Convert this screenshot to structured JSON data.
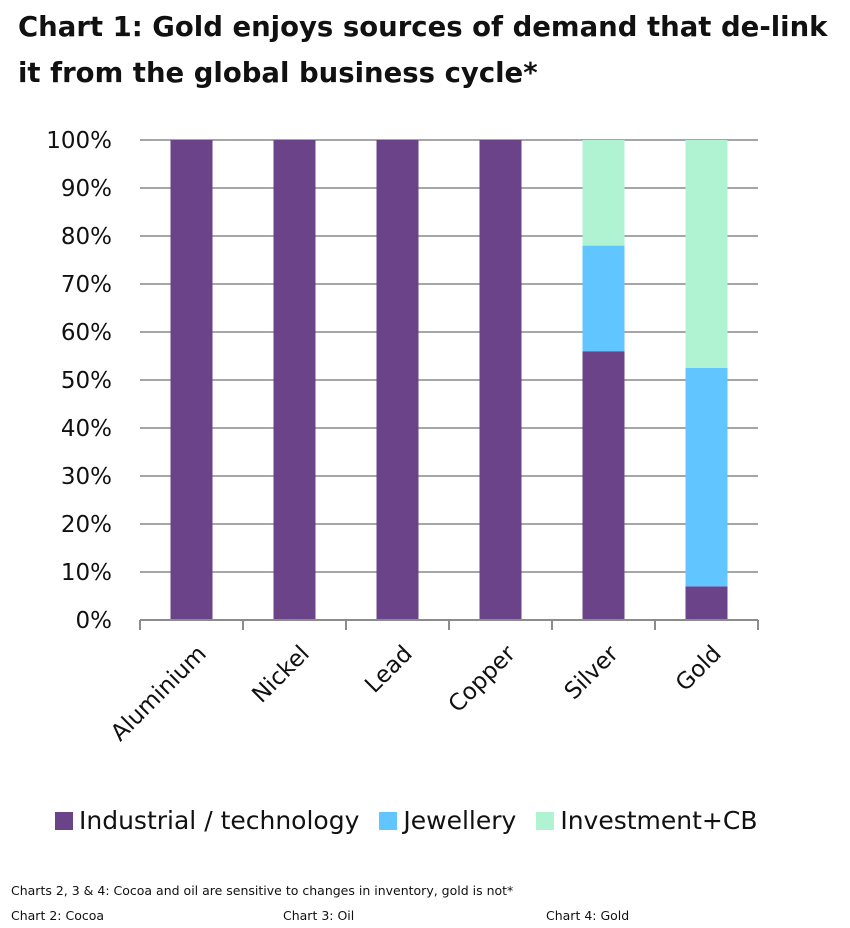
{
  "title": "Chart 1: Gold enjoys sources of demand that de-link it from the global business cycle*",
  "chart_data": {
    "type": "bar",
    "stacked": true,
    "categories": [
      "Aluminium",
      "Nickel",
      "Lead",
      "Copper",
      "Silver",
      "Gold"
    ],
    "series": [
      {
        "name": "Industrial / technology",
        "color": "#6b4388",
        "values": [
          100,
          100,
          100,
          100,
          56,
          7
        ]
      },
      {
        "name": "Jewellery",
        "color": "#61c6ff",
        "values": [
          0,
          0,
          0,
          0,
          22,
          45.5
        ]
      },
      {
        "name": "Investment+CB",
        "color": "#b0f3d3",
        "values": [
          0,
          0,
          0,
          0,
          22,
          47.5
        ]
      }
    ],
    "yticks": [
      "0%",
      "10%",
      "20%",
      "30%",
      "40%",
      "50%",
      "60%",
      "70%",
      "80%",
      "90%",
      "100%"
    ],
    "ylim": [
      0,
      100
    ],
    "grid": true,
    "legend_position": "bottom"
  },
  "footer": {
    "line1": "Charts 2, 3 & 4: Cocoa and oil are sensitive to changes in inventory, gold is not*",
    "chart2": "Chart 2: Cocoa",
    "chart3": "Chart 3: Oil",
    "chart4": "Chart 4: Gold"
  }
}
